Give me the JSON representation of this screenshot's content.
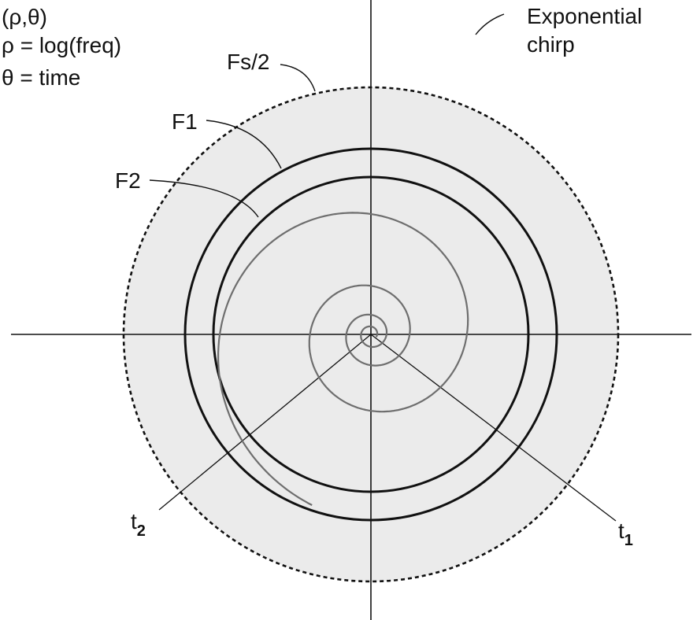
{
  "legend": {
    "line1": "(ρ,θ)",
    "line2": "ρ = log(freq)",
    "line3": "θ = time"
  },
  "labels": {
    "chirp_line1": "Exponential",
    "chirp_line2": "chirp",
    "nyquist": "Fs/2",
    "f1": "F1",
    "f2": "F2",
    "t1_base": "t",
    "t1_sub": "1",
    "t2_base": "t",
    "t2_sub": "2"
  },
  "colors": {
    "disc_fill": "#ebebeb",
    "spiral": "#6e6e6e",
    "circle": "#111111",
    "axis": "#111111"
  }
}
